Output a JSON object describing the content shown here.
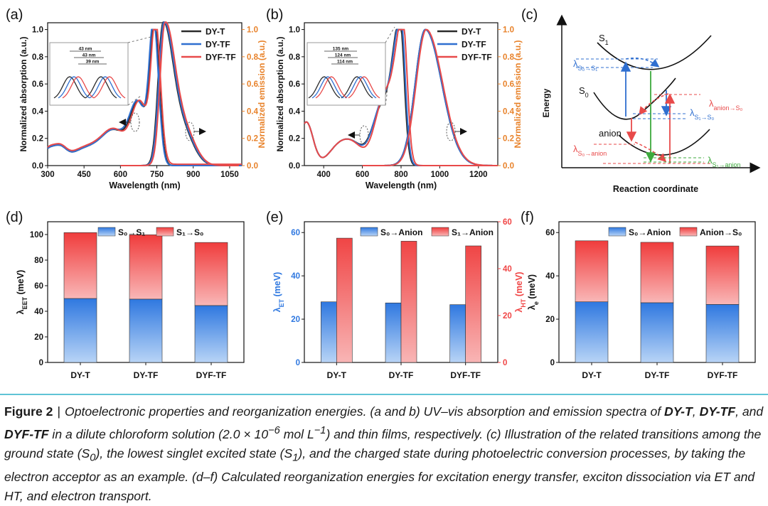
{
  "colors": {
    "black": "#2b2b2b",
    "blue": "#2f6fd0",
    "red": "#e84a4a",
    "orange": "#e8822a",
    "green": "#3daa3d",
    "bar_blue": "#2f78e0",
    "bar_red": "#f04545"
  },
  "panels": {
    "a": {
      "label": "(a)",
      "inset_labels": [
        "43 nm",
        "43 nm",
        "39 nm"
      ]
    },
    "b": {
      "label": "(b)",
      "inset_labels": [
        "135 nm",
        "124 nm",
        "114 nm"
      ]
    },
    "c": {
      "label": "(c)",
      "ylabel": "Energy",
      "xlabel": "Reaction coordinate",
      "state_s1": "S",
      "state_s1_sub": "1",
      "state_s0": "S",
      "state_s0_sub": "0",
      "state_anion": "anion",
      "lam_s0s1": "λ",
      "lam_s0s1_sub": "S0→S1",
      "lam_anion_s0_sub": "anion→S0",
      "lam_s1s0_sub": "S1→S0",
      "lam_s0anion_sub": "S0→anion",
      "lam_s1anion_sub": "S1→anion"
    },
    "d": {
      "label": "(d)"
    },
    "e": {
      "label": "(e)"
    },
    "f": {
      "label": "(f)"
    }
  },
  "chart_data": [
    {
      "panel": "a",
      "type": "line",
      "xlabel": "Wavelength (nm)",
      "ylabel": "Normalized  absorption (a.u.)",
      "ylabel_right": "Normalized emission (a.u.)",
      "xlim": [
        300,
        1100
      ],
      "xticks": [
        300,
        450,
        600,
        750,
        900,
        1050
      ],
      "ylim": [
        0,
        1.05
      ],
      "yticks": [
        0.0,
        0.2,
        0.4,
        0.6,
        0.8,
        1.0
      ],
      "legend": [
        "DY-T",
        "DY-TF",
        "DYF-TF"
      ],
      "series": [
        {
          "name": "DY-T",
          "abs_peak": 740,
          "em_peak": 775
        },
        {
          "name": "DY-TF",
          "abs_peak": 737,
          "em_peak": 778
        },
        {
          "name": "DYF-TF",
          "abs_peak": 745,
          "em_peak": 783
        }
      ]
    },
    {
      "panel": "b",
      "type": "line",
      "xlabel": "Wavelength (nm)",
      "ylabel": "Normalized  absorption (a.u.)",
      "ylabel_right": "Normalized emission (a.u.)",
      "xlim": [
        300,
        1300
      ],
      "xticks": [
        400,
        600,
        800,
        1000,
        1200
      ],
      "ylim": [
        0,
        1.05
      ],
      "yticks": [
        0.0,
        0.2,
        0.4,
        0.6,
        0.8,
        1.0
      ],
      "legend": [
        "DY-T",
        "DY-TF",
        "DYF-TF"
      ],
      "series": [
        {
          "name": "DY-T",
          "abs_peak": 795,
          "em_peak": 925
        },
        {
          "name": "DY-TF",
          "abs_peak": 800,
          "em_peak": 925
        },
        {
          "name": "DYF-TF",
          "abs_peak": 810,
          "em_peak": 930
        }
      ]
    },
    {
      "panel": "d",
      "type": "bar",
      "stacked": true,
      "categories": [
        "DY-T",
        "DY-TF",
        "DYF-TF"
      ],
      "ylabel": "λ",
      "ylabel_sub": "EET",
      "ylabel_unit": " (meV)",
      "ylim": [
        0,
        110
      ],
      "yticks": [
        0,
        20,
        40,
        60,
        80,
        100
      ],
      "series": [
        {
          "name": "S0→S1",
          "values": [
            50,
            49.5,
            44.5
          ]
        },
        {
          "name": "S1→S0",
          "values": [
            51.5,
            50.3,
            49.3
          ]
        }
      ]
    },
    {
      "panel": "e",
      "type": "bar",
      "stacked": false,
      "categories": [
        "DY-T",
        "DY-TF",
        "DYF-TF"
      ],
      "ylabel": "λ",
      "ylabel_sub": "ET",
      "ylabel_unit": " (meV)",
      "ylabel_right": "λ",
      "ylabel_right_sub": "HT",
      "ylabel_right_unit": " (meV)",
      "ylim": [
        0,
        65
      ],
      "yticks": [
        0,
        20,
        40,
        60
      ],
      "ylim_right": [
        0,
        60
      ],
      "yticks_right": [
        0,
        20,
        40,
        60
      ],
      "series": [
        {
          "name": "S0→Anion",
          "axis": "left",
          "values": [
            28,
            27.5,
            26.7
          ]
        },
        {
          "name": "S1→Anion",
          "axis": "right",
          "values": [
            53,
            51.7,
            49.7
          ]
        }
      ]
    },
    {
      "panel": "f",
      "type": "bar",
      "stacked": true,
      "categories": [
        "DY-T",
        "DY-TF",
        "DYF-TF"
      ],
      "ylabel": "λ",
      "ylabel_sub": "e",
      "ylabel_unit": " (meV)",
      "ylim": [
        0,
        65
      ],
      "yticks": [
        0,
        20,
        40,
        60
      ],
      "series": [
        {
          "name": "S0→Anion",
          "values": [
            28,
            27.6,
            26.8
          ]
        },
        {
          "name": "Anion→S0",
          "values": [
            28.2,
            27.9,
            27
          ]
        }
      ]
    }
  ],
  "caption": {
    "label": "Figure 2",
    "sep": "|",
    "t1": "Optoelectronic properties and reorganization energies. (a and b) UV–vis absorption and emission spectra of ",
    "c1": "DY-T",
    "t2": ", ",
    "c2": "DY-TF",
    "t3": ", and ",
    "c3": "DYF-TF",
    "t4": " in a dilute chloroform solution (2.0 × 10",
    "exp1": "−6",
    "t5": " mol L",
    "exp2": "−1",
    "t6": ") and thin films, respectively. (c) Illustration of the related transitions among the ground state (S",
    "sub0": "0",
    "t7": "), the lowest singlet excited state (S",
    "sub1": "1",
    "t8": "), and the charged state during photoelectric conversion processes, by taking the electron acceptor as an example. (d–f) Calculated reorganization energies for excitation energy transfer, exciton dissociation via ET and HT, and electron transport."
  }
}
